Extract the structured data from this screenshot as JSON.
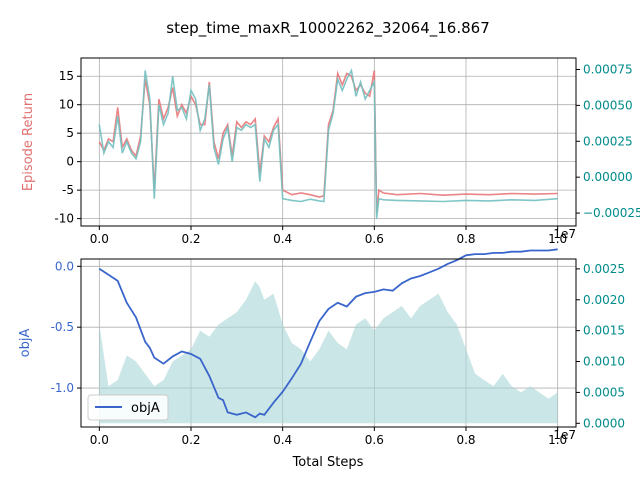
{
  "chart_data": {
    "title": "step_time_maxR_10002262_32064_16.867",
    "top": {
      "type": "line",
      "ylabel": "Episode Return",
      "ylabel_color": "#e07070",
      "ylim": [
        -11.3,
        18.2
      ],
      "yticks": [
        "-10",
        "-5",
        "0",
        "5",
        "10",
        "15"
      ],
      "y2lim": [
        -0.00034,
        0.00083
      ],
      "y2ticks": [
        "−0.00025",
        "0.00000",
        "0.00025",
        "0.00050",
        "0.00075"
      ],
      "y2_color": "#008b8b",
      "xlim": [
        -0.04,
        1.04
      ],
      "xticks": [
        "0.0",
        "0.2",
        "0.4",
        "0.6",
        "0.8",
        "1.0"
      ],
      "x_exponent": "1e7",
      "grid": true,
      "series": [
        {
          "color": "#e8777a",
          "x": [
            0.0,
            0.01,
            0.02,
            0.03,
            0.04,
            0.05,
            0.06,
            0.07,
            0.08,
            0.09,
            0.1,
            0.11,
            0.12,
            0.13,
            0.14,
            0.15,
            0.16,
            0.17,
            0.18,
            0.19,
            0.2,
            0.21,
            0.22,
            0.23,
            0.24,
            0.25,
            0.26,
            0.27,
            0.28,
            0.29,
            0.3,
            0.31,
            0.32,
            0.33,
            0.34,
            0.35,
            0.36,
            0.37,
            0.38,
            0.39,
            0.4,
            0.42,
            0.44,
            0.46,
            0.48,
            0.49,
            0.5,
            0.51,
            0.52,
            0.53,
            0.54,
            0.55,
            0.56,
            0.57,
            0.58,
            0.59,
            0.6,
            0.605,
            0.61,
            0.62,
            0.65,
            0.7,
            0.75,
            0.8,
            0.85,
            0.9,
            0.95,
            1.0
          ],
          "y": [
            3.5,
            2.0,
            4.0,
            3.5,
            9.5,
            2.5,
            4.0,
            2.0,
            1.0,
            4.5,
            14.5,
            10.0,
            -5.0,
            11.0,
            7.5,
            9.5,
            13.0,
            8.0,
            10.0,
            8.5,
            11.5,
            10.0,
            6.5,
            6.5,
            14.0,
            3.5,
            0.5,
            5.0,
            6.5,
            1.0,
            7.0,
            6.0,
            7.0,
            6.5,
            7.5,
            -2.0,
            4.5,
            3.5,
            6.0,
            7.5,
            -5.0,
            -5.8,
            -5.5,
            -5.8,
            -6.2,
            -6.0,
            6.5,
            9.0,
            15.5,
            13.5,
            15.5,
            15.0,
            12.5,
            13.5,
            12.0,
            11.5,
            16.0,
            -9.0,
            -5.0,
            -5.5,
            -5.8,
            -5.6,
            -5.9,
            -5.7,
            -5.8,
            -5.6,
            -5.7,
            -5.6
          ]
        },
        {
          "color": "#73c0c0",
          "x": [
            0.0,
            0.01,
            0.02,
            0.03,
            0.04,
            0.05,
            0.06,
            0.07,
            0.08,
            0.09,
            0.1,
            0.11,
            0.12,
            0.13,
            0.14,
            0.15,
            0.16,
            0.17,
            0.18,
            0.19,
            0.2,
            0.21,
            0.22,
            0.23,
            0.24,
            0.25,
            0.26,
            0.27,
            0.28,
            0.29,
            0.3,
            0.31,
            0.32,
            0.33,
            0.34,
            0.35,
            0.36,
            0.37,
            0.38,
            0.39,
            0.4,
            0.42,
            0.44,
            0.46,
            0.48,
            0.49,
            0.5,
            0.51,
            0.52,
            0.53,
            0.54,
            0.55,
            0.56,
            0.57,
            0.58,
            0.59,
            0.6,
            0.605,
            0.61,
            0.62,
            0.65,
            0.7,
            0.75,
            0.8,
            0.85,
            0.9,
            0.95,
            1.0
          ],
          "y": [
            6.5,
            1.5,
            3.5,
            2.5,
            8.0,
            1.5,
            3.5,
            1.5,
            0.5,
            3.5,
            16.0,
            11.0,
            -6.5,
            10.0,
            6.5,
            8.5,
            15.0,
            9.0,
            9.5,
            7.5,
            12.5,
            11.0,
            5.5,
            7.5,
            13.5,
            2.5,
            -0.5,
            4.0,
            6.0,
            0.0,
            6.0,
            5.5,
            6.5,
            6.0,
            6.5,
            -3.5,
            4.0,
            2.5,
            5.5,
            6.5,
            -6.5,
            -6.8,
            -7.0,
            -6.6,
            -6.9,
            -7.0,
            5.5,
            8.5,
            14.5,
            12.5,
            14.5,
            16.0,
            11.5,
            14.0,
            11.0,
            12.5,
            14.0,
            -10.0,
            -6.5,
            -6.7,
            -6.8,
            -6.9,
            -7.0,
            -6.8,
            -6.9,
            -6.7,
            -6.8,
            -6.5
          ]
        }
      ]
    },
    "bottom": {
      "type": "line",
      "xlabel": "Total Steps",
      "ylabel": "objA",
      "ylabel_color": "#3a66cc",
      "ylim": [
        -1.32,
        0.06
      ],
      "yticks": [
        "-1.0",
        "-0.5",
        "0.0"
      ],
      "y2lim": [
        -6e-05,
        0.00266
      ],
      "y2ticks": [
        "0.0000",
        "0.0005",
        "0.0010",
        "0.0015",
        "0.0020",
        "0.0025"
      ],
      "y2_color": "#008b8b",
      "xlim": [
        -0.04,
        1.04
      ],
      "xticks": [
        "0.0",
        "0.2",
        "0.4",
        "0.6",
        "0.8",
        "1.0"
      ],
      "x_exponent": "1e7",
      "grid": true,
      "legend": {
        "label": "objA",
        "placement": "lower-left"
      },
      "series": [
        {
          "name": "objA",
          "color": "#3a66cc",
          "x": [
            0.0,
            0.02,
            0.04,
            0.06,
            0.08,
            0.1,
            0.11,
            0.12,
            0.14,
            0.16,
            0.18,
            0.2,
            0.22,
            0.24,
            0.26,
            0.27,
            0.28,
            0.3,
            0.32,
            0.34,
            0.35,
            0.36,
            0.38,
            0.4,
            0.42,
            0.44,
            0.46,
            0.48,
            0.5,
            0.52,
            0.54,
            0.56,
            0.58,
            0.6,
            0.62,
            0.64,
            0.66,
            0.68,
            0.7,
            0.72,
            0.74,
            0.76,
            0.78,
            0.8,
            0.82,
            0.84,
            0.86,
            0.88,
            0.9,
            0.92,
            0.94,
            0.96,
            0.98,
            1.0
          ],
          "y": [
            -0.02,
            -0.07,
            -0.12,
            -0.3,
            -0.42,
            -0.62,
            -0.67,
            -0.75,
            -0.8,
            -0.74,
            -0.7,
            -0.72,
            -0.76,
            -0.9,
            -1.08,
            -1.1,
            -1.2,
            -1.22,
            -1.2,
            -1.24,
            -1.21,
            -1.22,
            -1.12,
            -1.03,
            -0.92,
            -0.8,
            -0.62,
            -0.45,
            -0.35,
            -0.3,
            -0.33,
            -0.25,
            -0.22,
            -0.21,
            -0.19,
            -0.2,
            -0.14,
            -0.1,
            -0.08,
            -0.05,
            -0.02,
            0.02,
            0.05,
            0.09,
            0.1,
            0.1,
            0.11,
            0.11,
            0.12,
            0.12,
            0.13,
            0.13,
            0.13,
            0.14
          ]
        },
        {
          "type": "area",
          "color": "#a8d5d5",
          "x": [
            0.0,
            0.02,
            0.04,
            0.06,
            0.08,
            0.1,
            0.12,
            0.14,
            0.16,
            0.18,
            0.2,
            0.22,
            0.24,
            0.26,
            0.28,
            0.3,
            0.32,
            0.34,
            0.35,
            0.36,
            0.38,
            0.4,
            0.42,
            0.44,
            0.46,
            0.48,
            0.5,
            0.52,
            0.54,
            0.56,
            0.58,
            0.6,
            0.62,
            0.64,
            0.66,
            0.68,
            0.7,
            0.72,
            0.74,
            0.76,
            0.78,
            0.8,
            0.82,
            0.84,
            0.86,
            0.88,
            0.9,
            0.92,
            0.94,
            0.96,
            0.98,
            1.0
          ],
          "y": [
            0.0016,
            0.0006,
            0.0007,
            0.0011,
            0.001,
            0.0008,
            0.0006,
            0.0007,
            0.001,
            0.0011,
            0.0012,
            0.0015,
            0.0014,
            0.0016,
            0.0017,
            0.0018,
            0.002,
            0.0023,
            0.0022,
            0.002,
            0.0021,
            0.0016,
            0.0013,
            0.0012,
            0.001,
            0.0012,
            0.0015,
            0.0013,
            0.0012,
            0.0016,
            0.0017,
            0.0015,
            0.0017,
            0.0018,
            0.0019,
            0.0017,
            0.0019,
            0.002,
            0.0021,
            0.0018,
            0.0016,
            0.0012,
            0.0008,
            0.0007,
            0.0006,
            0.0008,
            0.0006,
            0.0005,
            0.0006,
            0.0005,
            0.0004,
            0.0005
          ]
        }
      ]
    }
  }
}
